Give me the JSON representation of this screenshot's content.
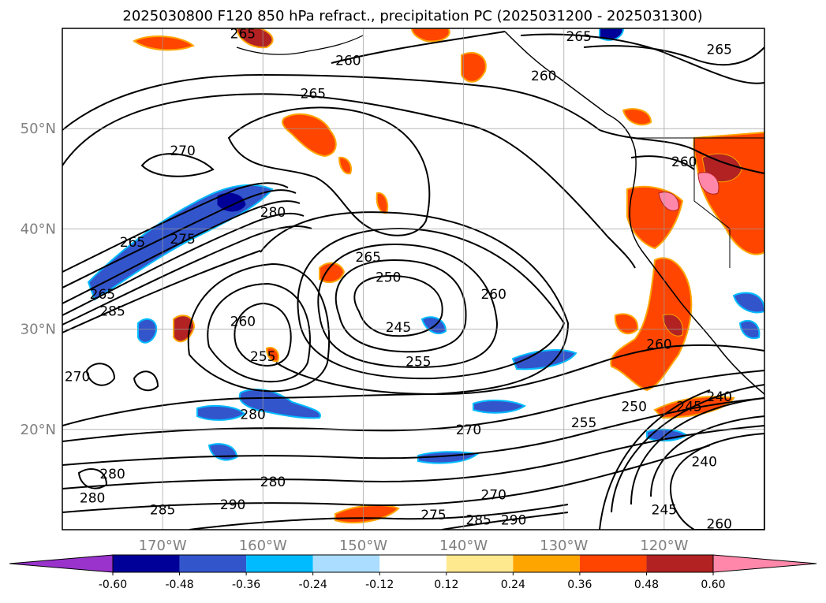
{
  "chart_data": {
    "type": "contour-map",
    "title": "2025030800 F120 850 hPa refract., precipitation PC (2025031200 - 2025031300)",
    "map_extent": {
      "lon": [
        -180,
        -110
      ],
      "lat": [
        10,
        60
      ]
    },
    "grid": true,
    "x_ticks": [
      {
        "lon": -170,
        "label": "170°W"
      },
      {
        "lon": -160,
        "label": "160°W"
      },
      {
        "lon": -150,
        "label": "150°W"
      },
      {
        "lon": -140,
        "label": "140°W"
      },
      {
        "lon": -130,
        "label": "130°W"
      },
      {
        "lon": -120,
        "label": "120°W"
      }
    ],
    "y_ticks": [
      {
        "lat": 20,
        "label": "20°N"
      },
      {
        "lat": 30,
        "label": "30°N"
      },
      {
        "lat": 40,
        "label": "40°N"
      },
      {
        "lat": 50,
        "label": "50°N"
      }
    ],
    "contour_levels": [
      240,
      245,
      250,
      255,
      260,
      265,
      270,
      275,
      280,
      285,
      290
    ],
    "contour_labels": [
      {
        "text": "265",
        "lon": -162,
        "lat": 59.5
      },
      {
        "text": "260",
        "lon": -151.5,
        "lat": 56.8
      },
      {
        "text": "265",
        "lon": -128.5,
        "lat": 59.2
      },
      {
        "text": "265",
        "lon": -114.5,
        "lat": 57.9
      },
      {
        "text": "260",
        "lon": -132,
        "lat": 55.3
      },
      {
        "text": "265",
        "lon": -155,
        "lat": 53.5
      },
      {
        "text": "270",
        "lon": -168,
        "lat": 47.8
      },
      {
        "text": "260",
        "lon": -118,
        "lat": 46.7
      },
      {
        "text": "280",
        "lon": -159,
        "lat": 41.7
      },
      {
        "text": "265",
        "lon": -173,
        "lat": 38.7
      },
      {
        "text": "275",
        "lon": -168,
        "lat": 39
      },
      {
        "text": "265",
        "lon": -149.5,
        "lat": 37.2
      },
      {
        "text": "250",
        "lon": -147.5,
        "lat": 35.2
      },
      {
        "text": "260",
        "lon": -137,
        "lat": 33.5
      },
      {
        "text": "265",
        "lon": -176,
        "lat": 33.5
      },
      {
        "text": "285",
        "lon": -175,
        "lat": 31.8
      },
      {
        "text": "260",
        "lon": -162,
        "lat": 30.8
      },
      {
        "text": "245",
        "lon": -146.5,
        "lat": 30.2
      },
      {
        "text": "255",
        "lon": -160,
        "lat": 27.3
      },
      {
        "text": "255",
        "lon": -144.5,
        "lat": 26.8
      },
      {
        "text": "260",
        "lon": -120.5,
        "lat": 28.5
      },
      {
        "text": "270",
        "lon": -178.5,
        "lat": 25.3
      },
      {
        "text": "240",
        "lon": -114.5,
        "lat": 23.3
      },
      {
        "text": "250",
        "lon": -123,
        "lat": 22.3
      },
      {
        "text": "245",
        "lon": -117.5,
        "lat": 22.3
      },
      {
        "text": "280",
        "lon": -161,
        "lat": 21.5
      },
      {
        "text": "255",
        "lon": -128,
        "lat": 20.7
      },
      {
        "text": "270",
        "lon": -139.5,
        "lat": 20
      },
      {
        "text": "240",
        "lon": -116,
        "lat": 16.8
      },
      {
        "text": "280",
        "lon": -175,
        "lat": 15.6
      },
      {
        "text": "280",
        "lon": -159,
        "lat": 14.8
      },
      {
        "text": "280",
        "lon": -177,
        "lat": 13.2
      },
      {
        "text": "270",
        "lon": -137,
        "lat": 13.5
      },
      {
        "text": "290",
        "lon": -163,
        "lat": 12.5
      },
      {
        "text": "285",
        "lon": -170,
        "lat": 12
      },
      {
        "text": "245",
        "lon": -120,
        "lat": 12
      },
      {
        "text": "275",
        "lon": -143,
        "lat": 11.5
      },
      {
        "text": "285",
        "lon": -138.5,
        "lat": 11
      },
      {
        "text": "290",
        "lon": -135,
        "lat": 11
      },
      {
        "text": "260",
        "lon": -114.5,
        "lat": 10.6
      }
    ],
    "colorbar": {
      "ticks": [
        "-0.60",
        "-0.48",
        "-0.36",
        "-0.24",
        "-0.12",
        "0.12",
        "0.24",
        "0.36",
        "0.48",
        "0.60"
      ],
      "bounds": [
        -0.6,
        -0.48,
        -0.36,
        -0.24,
        -0.12,
        0.12,
        0.24,
        0.36,
        0.48,
        0.6
      ],
      "colors": [
        "#9933cc",
        "#000099",
        "#3355cc",
        "#00bbff",
        "#aaddff",
        "#ffffff",
        "#ffe98f",
        "#ffa500",
        "#ff4500",
        "#b22222",
        "#ff88aa"
      ],
      "extend": "both"
    }
  }
}
